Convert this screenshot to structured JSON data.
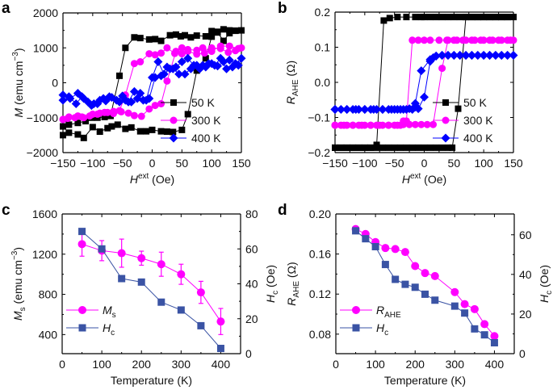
{
  "chart_data": [
    {
      "panel": "a",
      "type": "line",
      "xlabel": "H^ext (Oe)",
      "xlabel_main": "H",
      "xlabel_sup": "ext",
      "xlabel_unit": " (Oe)",
      "ylabel": "M (emu cm^-3)",
      "ylabel_main": "M",
      "ylabel_unit": " (emu cm",
      "ylabel_sup": "−3",
      "ylabel_close": ")",
      "xlim": [
        -150,
        150
      ],
      "ylim": [
        -2000,
        2000
      ],
      "xticks": [
        "−150",
        "−100",
        "−50",
        "0",
        "50",
        "100",
        "150"
      ],
      "xtick_values": [
        -150,
        -100,
        -50,
        0,
        50,
        100,
        150
      ],
      "yticks": [
        "−2000",
        "−1000",
        "0",
        "1000",
        "2000"
      ],
      "ytick_values": [
        -2000,
        -1000,
        0,
        1000,
        2000
      ],
      "legend_position": "bottom-right",
      "series": [
        {
          "name": "50 K",
          "color": "#000000",
          "marker": "square",
          "x": [
            -150,
            -140,
            -125,
            -115,
            -100,
            -88,
            -75,
            -68,
            -58,
            -45,
            -35,
            -20,
            -10,
            0,
            15,
            25,
            35,
            50,
            60,
            75,
            90,
            100,
            110,
            120,
            130,
            140,
            150,
            140,
            130,
            120,
            110,
            100,
            90,
            75,
            65,
            55,
            48,
            40,
            30,
            15,
            5,
            -5,
            -20,
            -30,
            -45,
            -55,
            -70,
            -80,
            -92,
            -102,
            -112,
            -125,
            -140,
            -150
          ],
          "y": [
            -1500,
            -1430,
            -1480,
            -1580,
            -1270,
            -1400,
            -1300,
            -1250,
            -1200,
            -1320,
            -1280,
            -1390,
            -1390,
            -1350,
            -1390,
            -1400,
            -1410,
            -1350,
            -900,
            350,
            700,
            1320,
            1460,
            1530,
            1500,
            1490,
            1500,
            1490,
            1420,
            1200,
            1440,
            1480,
            1330,
            1350,
            1300,
            1360,
            1330,
            1380,
            1360,
            1200,
            1250,
            1240,
            1280,
            1300,
            1000,
            200,
            -950,
            -980,
            -1000,
            -1000,
            -1100,
            -1150,
            -1200,
            -1250
          ]
        },
        {
          "name": "300 K",
          "color": "#ff00ff",
          "marker": "circle",
          "x": [
            -150,
            -140,
            -125,
            -115,
            -100,
            -88,
            -75,
            -65,
            -52,
            -40,
            -30,
            -18,
            -5,
            5,
            15,
            25,
            40,
            50,
            60,
            75,
            85,
            100,
            115,
            130,
            145,
            150,
            140,
            128,
            115,
            100,
            88,
            75,
            60,
            50,
            38,
            25,
            15,
            5,
            -5,
            -20,
            -30,
            -45,
            -55,
            -65,
            -80,
            -92,
            -105,
            -118,
            -130,
            -142,
            -150
          ],
          "y": [
            -1050,
            -980,
            -950,
            -1000,
            -900,
            -870,
            -850,
            -880,
            -830,
            -870,
            -940,
            -960,
            -750,
            -650,
            -600,
            50,
            900,
            1000,
            950,
            930,
            1000,
            900,
            1050,
            1050,
            980,
            1000,
            920,
            870,
            980,
            1000,
            850,
            820,
            900,
            830,
            840,
            1000,
            850,
            800,
            830,
            600,
            550,
            -350,
            -800,
            -820,
            -850,
            -900,
            -950,
            -980,
            -1000,
            -1020,
            -1050
          ]
        },
        {
          "name": "400 K",
          "color": "#0000ff",
          "marker": "diamond",
          "x": [
            -150,
            -140,
            -128,
            -118,
            -108,
            -98,
            -88,
            -78,
            -68,
            -55,
            -45,
            -35,
            -25,
            -15,
            -5,
            5,
            15,
            25,
            35,
            45,
            55,
            65,
            75,
            85,
            95,
            105,
            115,
            125,
            135,
            145,
            150,
            140,
            130,
            120,
            110,
            100,
            90,
            80,
            70,
            60,
            50,
            40,
            30,
            20,
            10,
            0,
            -10,
            -20,
            -30,
            -40,
            -50,
            -60,
            -72,
            -82,
            -92,
            -102,
            -115,
            -125,
            -138,
            -150
          ],
          "y": [
            -350,
            -400,
            -600,
            -400,
            -550,
            -600,
            -500,
            -520,
            -420,
            -550,
            -500,
            -550,
            -450,
            -500,
            -450,
            150,
            200,
            450,
            400,
            250,
            250,
            400,
            500,
            500,
            550,
            500,
            700,
            400,
            450,
            500,
            700,
            550,
            650,
            600,
            480,
            550,
            450,
            400,
            500,
            700,
            600,
            450,
            400,
            250,
            600,
            150,
            -500,
            -300,
            -250,
            -550,
            -380,
            -500,
            -400,
            -450,
            -600,
            -650,
            -450,
            -300,
            -450,
            -500
          ]
        }
      ]
    },
    {
      "panel": "b",
      "type": "line",
      "xlabel_main": "H",
      "xlabel_sup": "ext",
      "xlabel_unit": " (Oe)",
      "ylabel_main": "R",
      "ylabel_sub": "AHE",
      "ylabel_unit": " (Ω)",
      "xlim": [
        -150,
        150
      ],
      "ylim": [
        -0.2,
        0.2
      ],
      "xticks": [
        "−150",
        "−100",
        "−50",
        "0",
        "50",
        "100",
        "150"
      ],
      "xtick_values": [
        -150,
        -100,
        -50,
        0,
        50,
        100,
        150
      ],
      "yticks": [
        "−0.2",
        "−0.1",
        "0.0",
        "0.1",
        "0.2"
      ],
      "ytick_values": [
        -0.2,
        -0.1,
        0.0,
        0.1,
        0.2
      ],
      "legend_position": "bottom-right",
      "series": [
        {
          "name": "50 K",
          "color": "#000000",
          "marker": "square",
          "x": [
            -150,
            -140,
            -130,
            -120,
            -110,
            -100,
            -90,
            -80,
            -70,
            -60,
            -50,
            -40,
            -30,
            -20,
            -10,
            0,
            10,
            20,
            30,
            40,
            47,
            57,
            70,
            80,
            90,
            100,
            110,
            120,
            130,
            140,
            150,
            140,
            130,
            120,
            110,
            100,
            90,
            80,
            70,
            60,
            50,
            40,
            30,
            20,
            10,
            0,
            -5,
            -15,
            -30,
            -45,
            -58,
            -68,
            -80,
            -90,
            -100,
            -110,
            -120,
            -130,
            -140,
            -150
          ],
          "y": [
            -0.186,
            -0.186,
            -0.186,
            -0.186,
            -0.186,
            -0.186,
            -0.186,
            -0.186,
            -0.186,
            -0.186,
            -0.186,
            -0.186,
            -0.186,
            -0.186,
            -0.186,
            -0.186,
            -0.186,
            -0.186,
            -0.186,
            -0.186,
            -0.186,
            -0.075,
            0.186,
            0.186,
            0.186,
            0.186,
            0.186,
            0.186,
            0.186,
            0.186,
            0.186,
            0.186,
            0.186,
            0.186,
            0.186,
            0.186,
            0.186,
            0.186,
            0.186,
            0.186,
            0.186,
            0.186,
            0.186,
            0.186,
            0.186,
            0.186,
            0.186,
            0.186,
            0.186,
            0.186,
            0.183,
            0.176,
            -0.178,
            -0.186,
            -0.186,
            -0.186,
            -0.186,
            -0.186,
            -0.186,
            -0.186
          ]
        },
        {
          "name": "300 K",
          "color": "#ff00ff",
          "marker": "circle",
          "x": [
            -150,
            -140,
            -130,
            -120,
            -110,
            -100,
            -90,
            -80,
            -70,
            -60,
            -50,
            -40,
            -35,
            -25,
            -15,
            -5,
            5,
            15,
            30,
            40,
            55,
            70,
            85,
            100,
            115,
            130,
            145,
            150,
            140,
            125,
            110,
            95,
            80,
            65,
            50,
            38,
            25,
            10,
            0,
            -10,
            -20,
            -30,
            -35,
            -45,
            -60,
            -75,
            -90,
            -105,
            -120,
            -135,
            -150
          ],
          "y": [
            -0.122,
            -0.122,
            -0.122,
            -0.122,
            -0.122,
            -0.122,
            -0.122,
            -0.122,
            -0.122,
            -0.122,
            -0.122,
            -0.122,
            -0.11,
            -0.12,
            -0.12,
            -0.12,
            -0.12,
            -0.12,
            0.04,
            0.12,
            0.12,
            0.12,
            0.12,
            0.12,
            0.12,
            0.12,
            0.12,
            0.12,
            0.12,
            0.12,
            0.12,
            0.12,
            0.12,
            0.12,
            0.12,
            0.12,
            0.12,
            0.12,
            0.12,
            0.12,
            0.12,
            -0.11,
            -0.12,
            -0.122,
            -0.122,
            -0.122,
            -0.122,
            -0.122,
            -0.122,
            -0.122,
            -0.122
          ]
        },
        {
          "name": "400 K",
          "color": "#0000ff",
          "marker": "diamond",
          "x": [
            -150,
            -140,
            -130,
            -120,
            -110,
            -100,
            -90,
            -80,
            -70,
            -60,
            -50,
            -40,
            -30,
            -20,
            -15,
            -10,
            0,
            10,
            15,
            20,
            30,
            40,
            50,
            60,
            70,
            80,
            90,
            100,
            110,
            120,
            130,
            140,
            150,
            140,
            130,
            120,
            110,
            100,
            90,
            80,
            70,
            60,
            50,
            40,
            30,
            20,
            10,
            -5,
            -15,
            -25,
            -35,
            -45,
            -55,
            -70,
            -85,
            -100,
            -115,
            -130,
            -150
          ],
          "y": [
            -0.077,
            -0.077,
            -0.077,
            -0.077,
            -0.077,
            -0.077,
            -0.077,
            -0.077,
            -0.077,
            -0.077,
            -0.077,
            -0.077,
            -0.077,
            -0.077,
            -0.07,
            -0.075,
            -0.042,
            0.06,
            0.07,
            0.075,
            0.077,
            0.077,
            0.077,
            0.077,
            0.077,
            0.077,
            0.077,
            0.077,
            0.077,
            0.077,
            0.077,
            0.077,
            0.077,
            0.077,
            0.077,
            0.077,
            0.077,
            0.077,
            0.077,
            0.077,
            0.077,
            0.077,
            0.077,
            0.077,
            0.077,
            0.075,
            0.065,
            0.033,
            -0.06,
            -0.075,
            -0.077,
            -0.077,
            -0.077,
            -0.077,
            -0.077,
            -0.077,
            -0.077,
            -0.077,
            -0.077
          ]
        }
      ]
    },
    {
      "panel": "c",
      "type": "line",
      "xlabel": "Temperature (K)",
      "ylabel_main": "M",
      "ylabel_sub": "s",
      "ylabel_unit": " (emu cm",
      "ylabel_sup": "−3",
      "ylabel_close": ")",
      "y2label_main": "H",
      "y2label_sub": "c",
      "y2label_unit": " (Oe)",
      "xlim": [
        0,
        450
      ],
      "ylim": [
        210,
        1600
      ],
      "y2lim": [
        0,
        80
      ],
      "xticks": [
        "0",
        "100",
        "200",
        "300",
        "400"
      ],
      "xtick_values": [
        0,
        100,
        200,
        300,
        400
      ],
      "yticks": [
        "400",
        "800",
        "1200",
        "1600"
      ],
      "ytick_values": [
        400,
        800,
        1200,
        1600
      ],
      "y2ticks": [
        "0",
        "20",
        "40",
        "60",
        "80"
      ],
      "y2tick_values": [
        0,
        20,
        40,
        60,
        80
      ],
      "legend_position": "bottom-left",
      "series": [
        {
          "name_main": "M",
          "name_sub": "s",
          "color": "#ff00ff",
          "marker": "circle",
          "axis": "left",
          "x": [
            50,
            100,
            150,
            200,
            250,
            300,
            350,
            400
          ],
          "y": [
            1300,
            1235,
            1210,
            1160,
            1100,
            1000,
            820,
            530
          ],
          "yerr": [
            120,
            100,
            140,
            70,
            120,
            100,
            110,
            130
          ]
        },
        {
          "name_main": "H",
          "name_sub": "c",
          "color": "#3a53a4",
          "marker": "square",
          "axis": "right",
          "x": [
            50,
            100,
            150,
            200,
            250,
            300,
            350,
            400
          ],
          "y": [
            70,
            60,
            43,
            41,
            29.5,
            25,
            16,
            3
          ]
        }
      ]
    },
    {
      "panel": "d",
      "type": "line",
      "xlabel": "Temperature (K)",
      "ylabel_main": "R",
      "ylabel_sub": "AHE",
      "ylabel_unit": " (Ω)",
      "y2label_main": "H",
      "y2label_sub": "c",
      "y2label_unit": " (Oe)",
      "xlim": [
        0,
        450
      ],
      "ylim": [
        0.0605,
        0.2
      ],
      "y2lim": [
        0,
        70.5
      ],
      "xticks": [
        "0",
        "100",
        "200",
        "300",
        "400"
      ],
      "xtick_values": [
        0,
        100,
        200,
        300,
        400
      ],
      "yticks": [
        "0.08",
        "0.12",
        "0.16",
        "0.20"
      ],
      "ytick_values": [
        0.08,
        0.12,
        0.16,
        0.2
      ],
      "y2ticks": [
        "0",
        "20",
        "40",
        "60"
      ],
      "y2tick_values": [
        0,
        20,
        40,
        60
      ],
      "legend_position": "bottom-left",
      "series": [
        {
          "name_main": "R",
          "name_sub": "AHE",
          "color": "#ff00ff",
          "marker": "circle",
          "axis": "left",
          "x": [
            50,
            75,
            100,
            125,
            150,
            175,
            200,
            225,
            250,
            300,
            325,
            350,
            375,
            400
          ],
          "y": [
            0.185,
            0.18,
            0.172,
            0.166,
            0.165,
            0.162,
            0.148,
            0.141,
            0.138,
            0.122,
            0.11,
            0.105,
            0.09,
            0.078
          ]
        },
        {
          "name_main": "H",
          "name_sub": "c",
          "color": "#3a53a4",
          "marker": "square",
          "axis": "right",
          "x": [
            50,
            75,
            100,
            125,
            150,
            175,
            200,
            225,
            250,
            300,
            325,
            350,
            375,
            400
          ],
          "y": [
            62,
            58,
            54,
            45,
            37.5,
            35,
            33.5,
            30,
            27,
            24,
            20.5,
            12.5,
            9.5,
            5.5
          ]
        }
      ]
    }
  ],
  "panel_labels": [
    "a",
    "b",
    "c",
    "d"
  ]
}
